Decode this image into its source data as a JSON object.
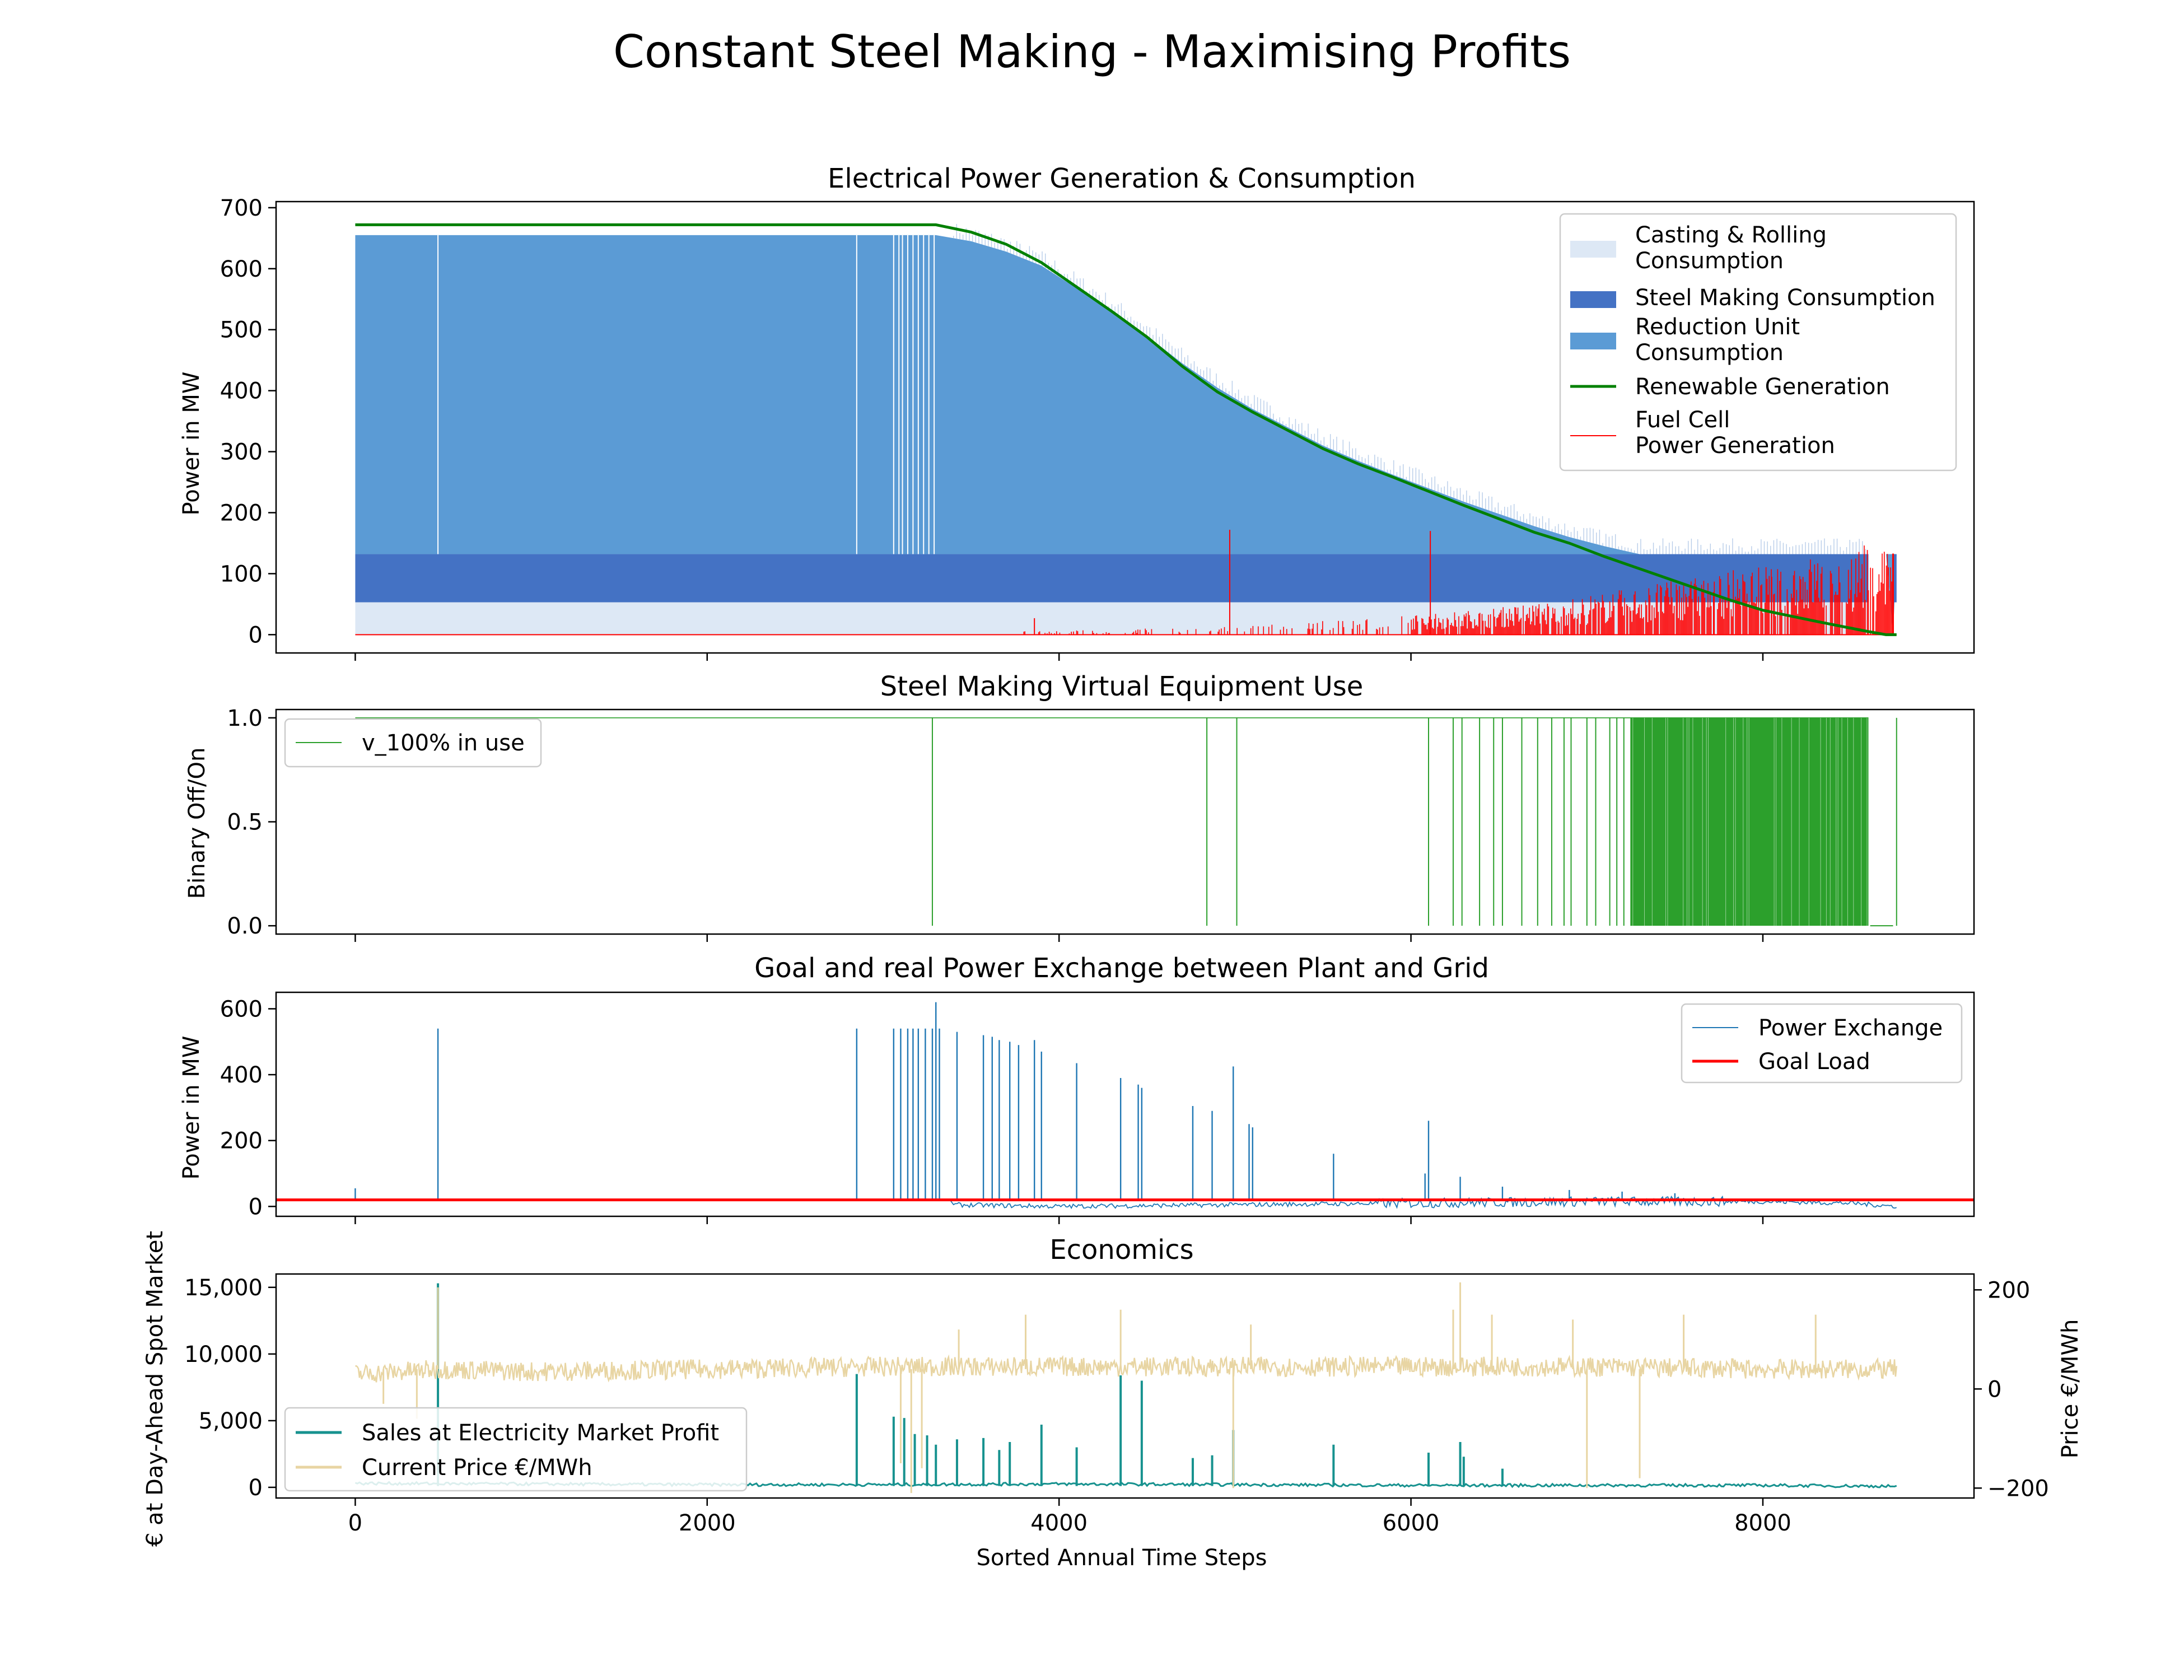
{
  "figure_title": "Constant Steel Making - Maximising Profits",
  "colors": {
    "casting": "#dde8f5",
    "steel": "#4472c4",
    "reduction": "#5b9bd5",
    "renewable": "#008000",
    "fuelcell": "#ff0000",
    "binary": "#2ca02c",
    "exchange": "#1f77b4",
    "goal": "#ff0000",
    "sales": "#17928f",
    "price": "#e8d5a3"
  },
  "chart_data": [
    {
      "type": "area",
      "title": "Electrical Power Generation & Consumption",
      "xlabel": "",
      "ylabel": "Power in MW",
      "xlim": [
        -450,
        9200
      ],
      "ylim": [
        -30,
        710
      ],
      "yticks": [
        0,
        100,
        200,
        300,
        400,
        500,
        600,
        700
      ],
      "xticks": [
        0,
        2000,
        4000,
        6000,
        8000
      ],
      "legend_position": "upper-right",
      "series": [
        {
          "name": "Casting & Rolling\nConsumption",
          "kind": "stacked-fill",
          "band": [
            0,
            53
          ]
        },
        {
          "name": "Steel Making Consumption",
          "kind": "stacked-fill",
          "band": [
            53,
            132
          ]
        },
        {
          "name": "Reduction Unit\nConsumption",
          "kind": "stacked-fill",
          "x": [
            0,
            3300,
            3500,
            3700,
            3900,
            4100,
            4300,
            4500,
            4700,
            4900,
            5100,
            5300,
            5500,
            5700,
            5900,
            6100,
            6300,
            6500,
            6700,
            6900,
            7100,
            7300,
            7500,
            7700,
            7900,
            8100,
            8300,
            8500,
            8700,
            8740,
            8760
          ],
          "top": [
            655,
            655,
            645,
            628,
            605,
            568,
            530,
            490,
            445,
            405,
            370,
            340,
            310,
            285,
            262,
            240,
            218,
            198,
            178,
            160,
            145,
            132,
            132,
            132,
            132,
            132,
            132,
            132,
            132,
            0,
            132
          ]
        },
        {
          "name": "Renewable Generation",
          "kind": "line",
          "x": [
            0,
            3300,
            3500,
            3700,
            3900,
            4100,
            4300,
            4500,
            4700,
            4900,
            5100,
            5300,
            5500,
            5700,
            5900,
            6100,
            6300,
            6500,
            6700,
            6900,
            7100,
            7300,
            7500,
            7700,
            7800,
            8000,
            8300,
            8600,
            8700,
            8760
          ],
          "y": [
            672,
            672,
            660,
            640,
            610,
            570,
            530,
            488,
            440,
            398,
            365,
            335,
            305,
            280,
            258,
            235,
            212,
            190,
            168,
            150,
            128,
            108,
            88,
            68,
            58,
            40,
            22,
            5,
            0,
            0
          ]
        },
        {
          "name": "Fuel Cell\nPower Generation",
          "kind": "spikes",
          "envelope_x": [
            0,
            3900,
            4800,
            5600,
            6200,
            6800,
            7400,
            8000,
            8600,
            8740
          ],
          "envelope_y": [
            0,
            5,
            10,
            20,
            30,
            45,
            70,
            95,
            125,
            133
          ],
          "spikes": [
            [
              3860,
              27
            ],
            [
              4970,
              172
            ],
            [
              6110,
              170
            ],
            [
              7720,
              70
            ],
            [
              8050,
              95
            ]
          ]
        }
      ]
    },
    {
      "type": "line",
      "title": "Steel Making Virtual Equipment Use",
      "xlabel": "",
      "ylabel": "Binary Off/On",
      "xlim": [
        -450,
        9200
      ],
      "ylim": [
        -0.04,
        1.04
      ],
      "yticks": [
        0.0,
        0.5,
        1.0
      ],
      "ytick_labels": [
        "0.0",
        "0.5",
        "1.0"
      ],
      "legend_position": "upper-left",
      "series": [
        {
          "name": "v_100% in use",
          "baseline": 1,
          "off_x": [
            3280,
            4840,
            5010,
            6100,
            6240,
            6290,
            6390,
            6470,
            6520,
            6630,
            6720,
            6800,
            6870,
            6910,
            7000,
            7050,
            7130,
            7170,
            7210,
            7250
          ],
          "dense_off_range": [
            7250,
            8600
          ],
          "final_off_range": [
            8610,
            8740
          ],
          "end_x": 8760
        }
      ]
    },
    {
      "type": "line",
      "title": "Goal and real Power Exchange between Plant and Grid",
      "xlabel": "",
      "ylabel": "Power in MW",
      "xlim": [
        -450,
        9200
      ],
      "ylim": [
        -30,
        650
      ],
      "yticks": [
        0,
        200,
        400,
        600
      ],
      "legend_position": "upper-right",
      "series": [
        {
          "name": "Power Exchange",
          "spikes": [
            [
              0,
              55
            ],
            [
              470,
              540
            ],
            [
              2850,
              540
            ],
            [
              3060,
              540
            ],
            [
              3100,
              540
            ],
            [
              3140,
              540
            ],
            [
              3170,
              540
            ],
            [
              3200,
              540
            ],
            [
              3240,
              540
            ],
            [
              3280,
              540
            ],
            [
              3300,
              620
            ],
            [
              3320,
              540
            ],
            [
              3420,
              530
            ],
            [
              3570,
              520
            ],
            [
              3620,
              515
            ],
            [
              3660,
              505
            ],
            [
              3720,
              500
            ],
            [
              3770,
              490
            ],
            [
              3860,
              505
            ],
            [
              3900,
              470
            ],
            [
              4100,
              435
            ],
            [
              4350,
              390
            ],
            [
              4450,
              370
            ],
            [
              4470,
              360
            ],
            [
              4760,
              305
            ],
            [
              4870,
              290
            ],
            [
              4990,
              425
            ],
            [
              5080,
              250
            ],
            [
              5100,
              240
            ],
            [
              5560,
              160
            ],
            [
              6100,
              260
            ],
            [
              6080,
              100
            ],
            [
              6280,
              90
            ],
            [
              6520,
              60
            ],
            [
              6900,
              50
            ],
            [
              7200,
              45
            ],
            [
              7500,
              40
            ]
          ],
          "base_x": [
            3400,
            4000,
            5000,
            6000,
            7000,
            8000,
            8500,
            8760
          ],
          "base_y": [
            5,
            0,
            5,
            10,
            15,
            15,
            10,
            0
          ]
        },
        {
          "name": "Goal Load",
          "y": 20
        }
      ]
    },
    {
      "type": "line",
      "title": "Economics",
      "xlabel": "Sorted Annual Time Steps",
      "ylabel": "€ at Day-Ahead Spot Market",
      "y2label": "Price €/MWh",
      "xlim": [
        -450,
        9200
      ],
      "ylim": [
        -800,
        16000
      ],
      "y2lim": [
        -220,
        232
      ],
      "yticks": [
        0,
        5000,
        10000,
        15000
      ],
      "ytick_labels": [
        "0",
        "5,000",
        "10,000",
        "15,000"
      ],
      "y2ticks": [
        -200,
        0,
        200
      ],
      "y2tick_labels": [
        "−200",
        "0",
        "200"
      ],
      "xticks": [
        0,
        2000,
        4000,
        6000,
        8000
      ],
      "xtick_labels": [
        "0",
        "2000",
        "4000",
        "6000",
        "8000"
      ],
      "legend_position": "lower-left",
      "series": [
        {
          "name": "Sales at Electricity Market Profit",
          "axis": "left",
          "base_x": [
            0,
            2000,
            3000,
            4000,
            6000,
            8000,
            8760
          ],
          "base_y": [
            300,
            200,
            200,
            250,
            150,
            150,
            80
          ],
          "spikes": [
            [
              470,
              15300
            ],
            [
              2850,
              8500
            ],
            [
              3060,
              5300
            ],
            [
              3120,
              5200
            ],
            [
              3180,
              4000
            ],
            [
              3250,
              3900
            ],
            [
              3300,
              3200
            ],
            [
              3420,
              3600
            ],
            [
              3570,
              3700
            ],
            [
              3660,
              2800
            ],
            [
              3720,
              3400
            ],
            [
              3900,
              4700
            ],
            [
              4100,
              3000
            ],
            [
              4350,
              8400
            ],
            [
              4470,
              8000
            ],
            [
              4760,
              2200
            ],
            [
              4870,
              2400
            ],
            [
              4990,
              4300
            ],
            [
              5560,
              3200
            ],
            [
              6100,
              2600
            ],
            [
              6280,
              3400
            ],
            [
              6300,
              2300
            ],
            [
              6520,
              1400
            ]
          ]
        },
        {
          "name": "Current Price €/MWh",
          "axis": "right",
          "base_x": [
            0,
            500,
            1000,
            2000,
            3000,
            4000,
            5000,
            6000,
            7000,
            8000,
            8760
          ],
          "base_y": [
            30,
            40,
            35,
            40,
            45,
            45,
            45,
            45,
            45,
            40,
            40
          ],
          "spikes": [
            [
              470,
              205
            ],
            [
              3100,
              -150
            ],
            [
              3160,
              -210
            ],
            [
              3220,
              -160
            ],
            [
              3430,
              120
            ],
            [
              3810,
              150
            ],
            [
              4350,
              160
            ],
            [
              4990,
              -200
            ],
            [
              5090,
              130
            ],
            [
              6280,
              215
            ],
            [
              6240,
              160
            ],
            [
              6460,
              150
            ],
            [
              6920,
              140
            ],
            [
              7000,
              -200
            ],
            [
              7300,
              -180
            ],
            [
              7550,
              150
            ],
            [
              8300,
              150
            ],
            [
              160,
              -30
            ],
            [
              350,
              -60
            ]
          ]
        }
      ]
    }
  ]
}
